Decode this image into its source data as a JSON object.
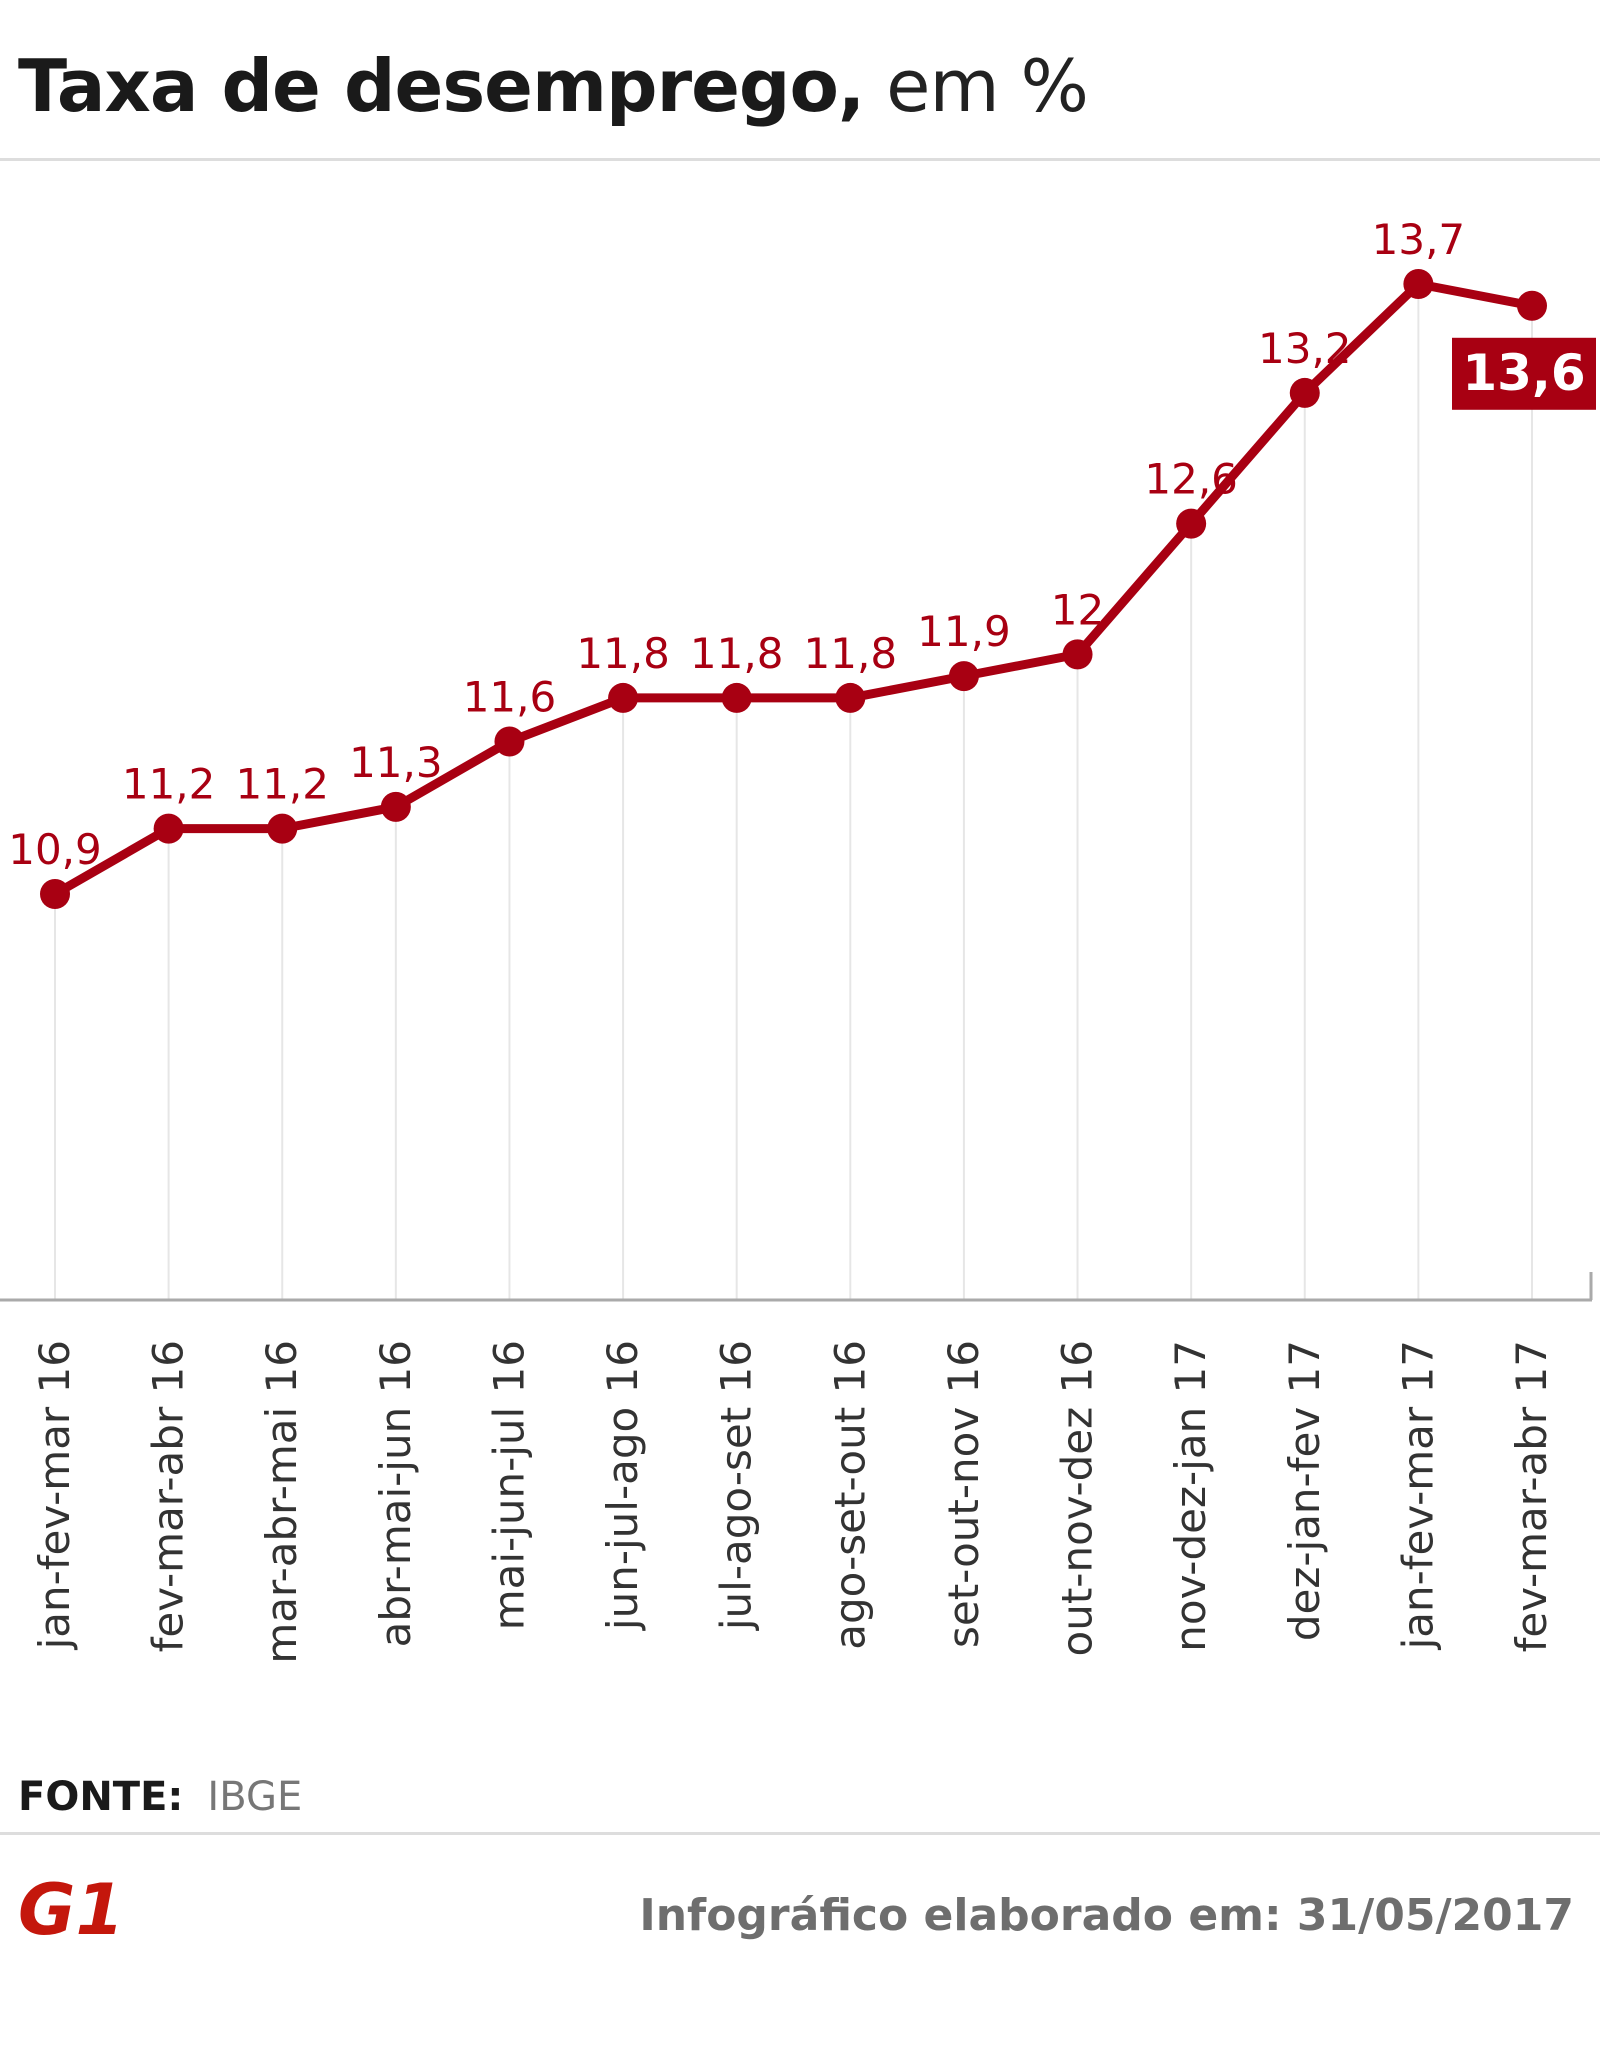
{
  "header": {
    "title_main": "Taxa de desemprego,",
    "title_unit": " em %"
  },
  "chart_data": {
    "type": "line",
    "title": "Taxa de desemprego, em %",
    "xlabel": "",
    "ylabel": "",
    "grid": "vertical guides at each category",
    "categories": [
      "jan-fev-mar 16",
      "fev-mar-abr 16",
      "mar-abr-mai 16",
      "abr-mai-jun 16",
      "mai-jun-jul 16",
      "jun-jul-ago 16",
      "jul-ago-set 16",
      "ago-set-out 16",
      "set-out-nov 16",
      "out-nov-dez 16",
      "nov-dez-jan 17",
      "dez-jan-fev 17",
      "jan-fev-mar 17",
      "fev-mar-abr 17"
    ],
    "series": [
      {
        "values": [
          10.9,
          11.2,
          11.2,
          11.3,
          11.6,
          11.8,
          11.8,
          11.8,
          11.9,
          12,
          12.6,
          13.2,
          13.7,
          13.6
        ]
      }
    ],
    "data_labels": [
      "10,9",
      "11,2",
      "11,2",
      "11,3",
      "11,6",
      "11,8",
      "11,8",
      "11,8",
      "11,9",
      "12",
      "12,6",
      "13,2",
      "13,7",
      "13,6"
    ],
    "highlight_last": true,
    "colors": {
      "line": "#a80012",
      "label": "#a80012",
      "highlight_bg": "#a80012",
      "highlight_text": "#ffffff",
      "guide": "#e6e6e6",
      "axis": "#aaaaaa",
      "tick_label": "#333333"
    }
  },
  "footer": {
    "source_label": "FONTE:",
    "source_value": "IBGE",
    "logo_text": "G1",
    "credit": "Infográfico elaborado em: 31/05/2017",
    "logo_color": "#c4170c"
  }
}
